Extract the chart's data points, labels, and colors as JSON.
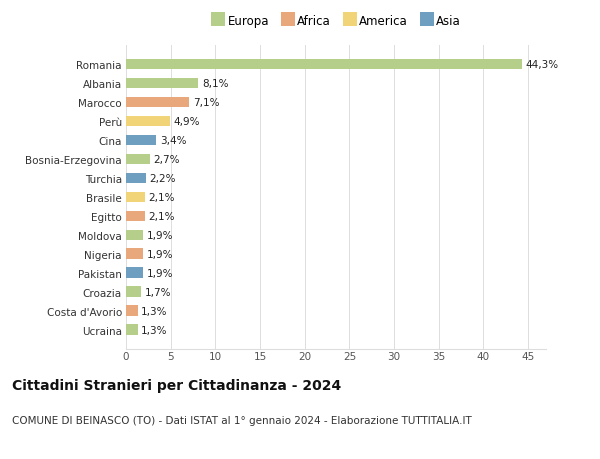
{
  "countries": [
    "Romania",
    "Albania",
    "Marocco",
    "Perù",
    "Cina",
    "Bosnia-Erzegovina",
    "Turchia",
    "Brasile",
    "Egitto",
    "Moldova",
    "Nigeria",
    "Pakistan",
    "Croazia",
    "Costa d'Avorio",
    "Ucraina"
  ],
  "values": [
    44.3,
    8.1,
    7.1,
    4.9,
    3.4,
    2.7,
    2.2,
    2.1,
    2.1,
    1.9,
    1.9,
    1.9,
    1.7,
    1.3,
    1.3
  ],
  "labels": [
    "44,3%",
    "8,1%",
    "7,1%",
    "4,9%",
    "3,4%",
    "2,7%",
    "2,2%",
    "2,1%",
    "2,1%",
    "1,9%",
    "1,9%",
    "1,9%",
    "1,7%",
    "1,3%",
    "1,3%"
  ],
  "continents": [
    "Europa",
    "Europa",
    "Africa",
    "America",
    "Asia",
    "Europa",
    "Asia",
    "America",
    "Africa",
    "Europa",
    "Africa",
    "Asia",
    "Europa",
    "Africa",
    "Europa"
  ],
  "colors": {
    "Europa": "#b5ce8a",
    "Africa": "#e8a87c",
    "America": "#f2d478",
    "Asia": "#6e9ec0"
  },
  "legend_order": [
    "Europa",
    "Africa",
    "America",
    "Asia"
  ],
  "title": "Cittadini Stranieri per Cittadinanza - 2024",
  "subtitle": "COMUNE DI BEINASCO (TO) - Dati ISTAT al 1° gennaio 2024 - Elaborazione TUTTITALIA.IT",
  "xlim": [
    0,
    47
  ],
  "xticks": [
    0,
    5,
    10,
    15,
    20,
    25,
    30,
    35,
    40,
    45
  ],
  "bg_color": "#ffffff",
  "grid_color": "#dddddd",
  "bar_height": 0.55,
  "title_fontsize": 10,
  "subtitle_fontsize": 7.5,
  "label_fontsize": 7.5,
  "tick_fontsize": 7.5,
  "legend_fontsize": 8.5
}
